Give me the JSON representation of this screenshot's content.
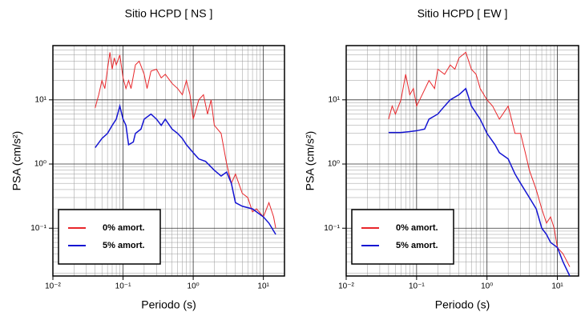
{
  "chart_data": [
    {
      "type": "line",
      "title": "Sitio HCPD [ NS ]",
      "xlabel": "Periodo (s)",
      "ylabel": "PSA (cm/s²)",
      "xscale": "log",
      "yscale": "log",
      "grid": true,
      "legend": "lower left",
      "xlim": [
        0.01,
        20
      ],
      "ylim": [
        0.018,
        70
      ],
      "xticks": [
        {
          "value": 0.01,
          "label": "10⁻²"
        },
        {
          "value": 0.1,
          "label": "10⁻¹"
        },
        {
          "value": 1,
          "label": "10⁰"
        },
        {
          "value": 10,
          "label": "10¹"
        }
      ],
      "yticks": [
        {
          "value": 0.1,
          "label": "10⁻¹"
        },
        {
          "value": 1,
          "label": "10⁰"
        },
        {
          "value": 10,
          "label": "10¹"
        }
      ],
      "xminorticks": [
        0.02,
        0.03,
        0.04,
        0.05,
        0.06,
        0.07,
        0.08,
        0.09,
        0.2,
        0.3,
        0.4,
        0.5,
        0.6,
        0.7,
        0.8,
        0.9,
        2,
        3,
        4,
        5,
        6,
        7,
        8,
        9
      ],
      "yminorticks": [
        0.02,
        0.03,
        0.04,
        0.05,
        0.06,
        0.07,
        0.08,
        0.09,
        0.2,
        0.3,
        0.4,
        0.5,
        0.6,
        0.7,
        0.8,
        0.9,
        2,
        3,
        4,
        5,
        6,
        7,
        8,
        9,
        20,
        30,
        40,
        50,
        60
      ],
      "series": [
        {
          "name": "0% amort.",
          "color": "#e8262a",
          "x": [
            0.04,
            0.045,
            0.05,
            0.055,
            0.06,
            0.065,
            0.07,
            0.075,
            0.08,
            0.09,
            0.1,
            0.11,
            0.12,
            0.13,
            0.15,
            0.17,
            0.2,
            0.22,
            0.25,
            0.3,
            0.35,
            0.4,
            0.5,
            0.6,
            0.7,
            0.8,
            0.9,
            1.0,
            1.2,
            1.4,
            1.6,
            1.8,
            2.0,
            2.5,
            3.0,
            3.5,
            4,
            5,
            6,
            7,
            8,
            10,
            12,
            14,
            15
          ],
          "values": [
            7.5,
            12,
            20,
            15,
            30,
            55,
            30,
            45,
            35,
            50,
            22,
            15,
            20,
            15,
            35,
            40,
            25,
            15,
            28,
            30,
            22,
            25,
            18,
            15,
            12,
            20,
            12,
            5,
            10,
            12,
            6,
            10,
            4,
            3,
            1.0,
            0.5,
            0.7,
            0.35,
            0.3,
            0.18,
            0.2,
            0.15,
            0.25,
            0.15,
            0.1
          ]
        },
        {
          "name": "5% amort.",
          "color": "#1414d2",
          "x": [
            0.04,
            0.05,
            0.06,
            0.07,
            0.08,
            0.09,
            0.1,
            0.11,
            0.12,
            0.14,
            0.15,
            0.18,
            0.2,
            0.25,
            0.3,
            0.35,
            0.4,
            0.5,
            0.6,
            0.7,
            0.8,
            1.0,
            1.2,
            1.5,
            2,
            2.5,
            3,
            3.5,
            4,
            5,
            7,
            10,
            12,
            15
          ],
          "values": [
            1.8,
            2.5,
            3,
            4,
            5,
            8,
            5,
            4,
            2,
            2.2,
            3,
            3.5,
            5,
            6,
            5,
            4,
            5,
            3.5,
            3,
            2.5,
            2,
            1.5,
            1.2,
            1.1,
            0.8,
            0.65,
            0.75,
            0.5,
            0.25,
            0.22,
            0.2,
            0.15,
            0.12,
            0.08
          ]
        }
      ]
    },
    {
      "type": "line",
      "title": "Sitio HCPD [ EW ]",
      "xlabel": "Periodo (s)",
      "ylabel": "PSA (cm/s²)",
      "xscale": "log",
      "yscale": "log",
      "grid": true,
      "legend": "lower left",
      "xlim": [
        0.01,
        20
      ],
      "ylim": [
        0.018,
        70
      ],
      "xticks": [
        {
          "value": 0.01,
          "label": "10⁻²"
        },
        {
          "value": 0.1,
          "label": "10⁻¹"
        },
        {
          "value": 1,
          "label": "10⁰"
        },
        {
          "value": 10,
          "label": "10¹"
        }
      ],
      "yticks": [
        {
          "value": 0.1,
          "label": "10⁻¹"
        },
        {
          "value": 1,
          "label": "10⁰"
        },
        {
          "value": 10,
          "label": "10¹"
        }
      ],
      "xminorticks": [
        0.02,
        0.03,
        0.04,
        0.05,
        0.06,
        0.07,
        0.08,
        0.09,
        0.2,
        0.3,
        0.4,
        0.5,
        0.6,
        0.7,
        0.8,
        0.9,
        2,
        3,
        4,
        5,
        6,
        7,
        8,
        9
      ],
      "yminorticks": [
        0.02,
        0.03,
        0.04,
        0.05,
        0.06,
        0.07,
        0.08,
        0.09,
        0.2,
        0.3,
        0.4,
        0.5,
        0.6,
        0.7,
        0.8,
        0.9,
        2,
        3,
        4,
        5,
        6,
        7,
        8,
        9,
        20,
        30,
        40,
        50,
        60
      ],
      "series": [
        {
          "name": "0% amort.",
          "color": "#e8262a",
          "x": [
            0.04,
            0.045,
            0.05,
            0.06,
            0.07,
            0.08,
            0.09,
            0.1,
            0.12,
            0.15,
            0.18,
            0.2,
            0.25,
            0.3,
            0.35,
            0.4,
            0.5,
            0.6,
            0.7,
            0.8,
            1.0,
            1.2,
            1.5,
            2,
            2.5,
            3,
            3.5,
            4,
            5,
            6,
            7,
            8,
            9,
            10,
            12,
            15
          ],
          "values": [
            5,
            8,
            6,
            10,
            25,
            12,
            15,
            8,
            12,
            20,
            15,
            30,
            25,
            35,
            30,
            45,
            55,
            30,
            25,
            15,
            10,
            8,
            5,
            8,
            3,
            3,
            1.5,
            0.8,
            0.4,
            0.2,
            0.12,
            0.15,
            0.1,
            0.05,
            0.04,
            0.025
          ]
        },
        {
          "name": "5% amort.",
          "color": "#1414d2",
          "x": [
            0.04,
            0.06,
            0.08,
            0.1,
            0.13,
            0.15,
            0.2,
            0.25,
            0.3,
            0.4,
            0.5,
            0.6,
            0.8,
            1.0,
            1.3,
            1.5,
            2,
            2.5,
            3,
            4,
            5,
            6,
            7,
            8,
            10,
            12,
            15
          ],
          "values": [
            3.1,
            3.1,
            3.2,
            3.3,
            3.5,
            5,
            6,
            8,
            10,
            12,
            15,
            8,
            5,
            3,
            2,
            1.5,
            1.2,
            0.7,
            0.5,
            0.3,
            0.2,
            0.1,
            0.08,
            0.06,
            0.05,
            0.03,
            0.018
          ]
        }
      ]
    }
  ]
}
